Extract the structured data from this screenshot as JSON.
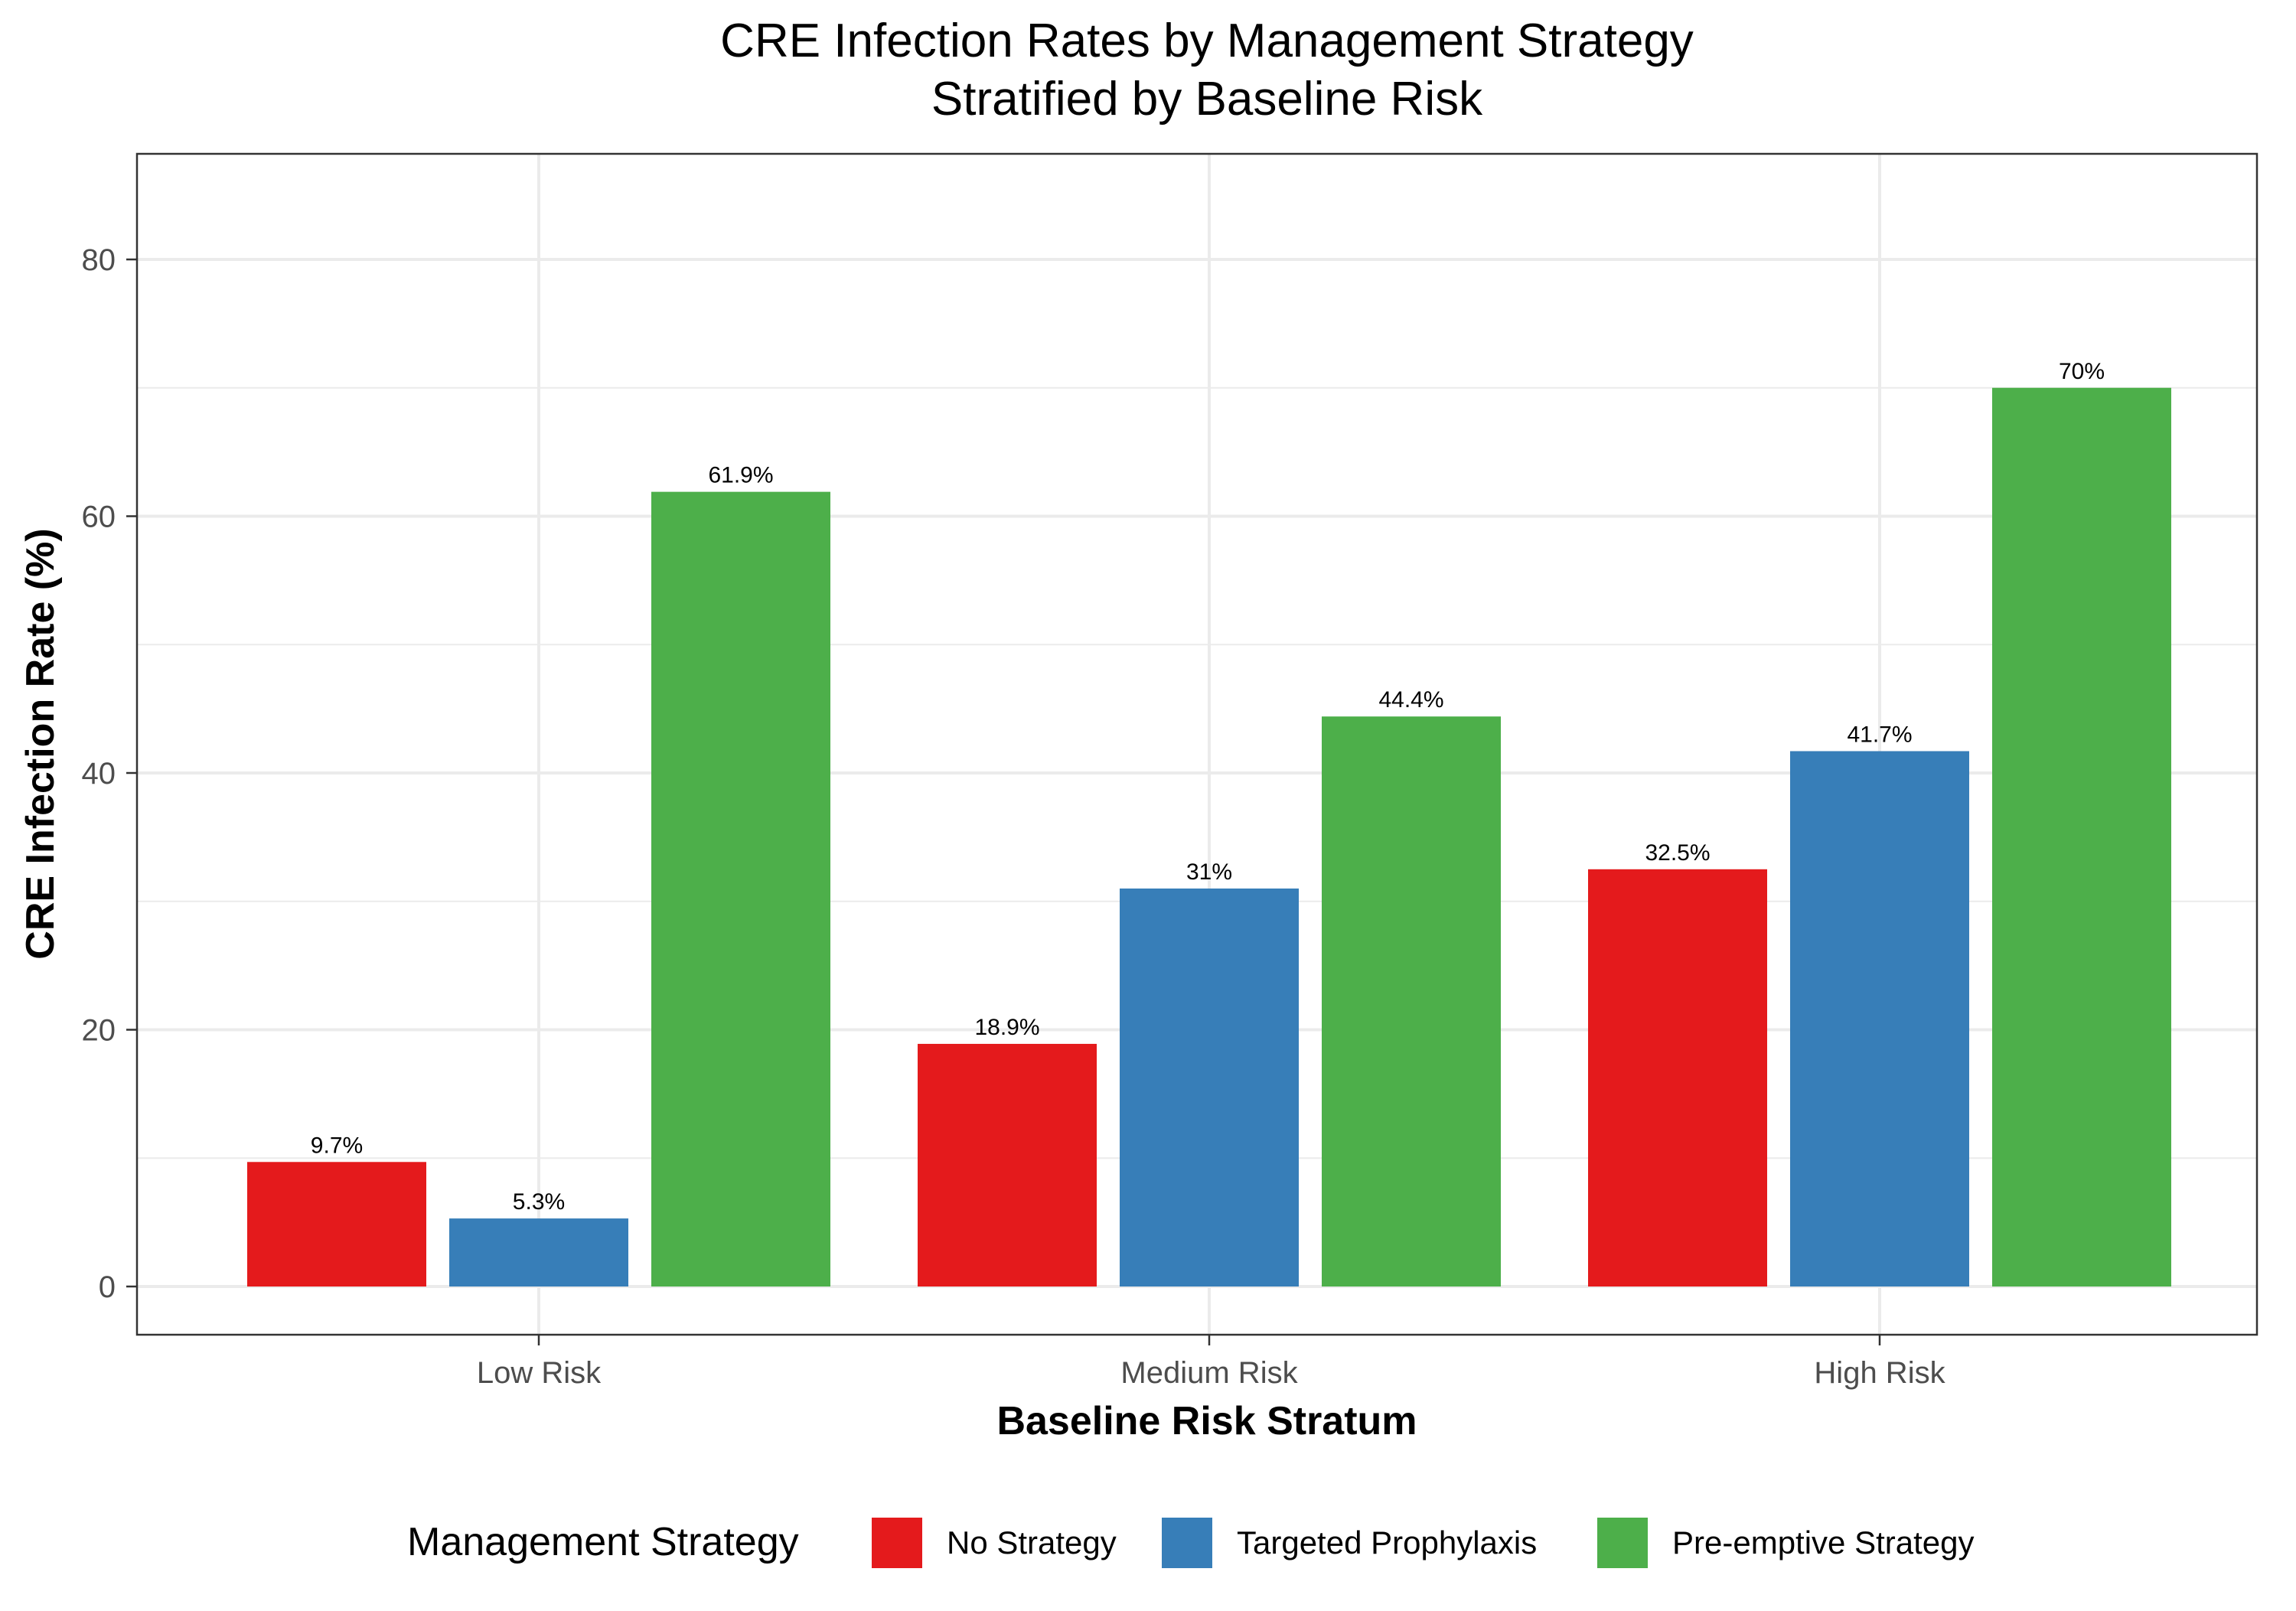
{
  "chart_data": {
    "type": "bar",
    "title_line1": "CRE Infection Rates by Management Strategy",
    "title_line2": "Stratified by Baseline Risk",
    "xlabel": "Baseline Risk Stratum",
    "ylabel": "CRE Infection Rate (%)",
    "categories": [
      "Low Risk",
      "Medium Risk",
      "High Risk"
    ],
    "series": [
      {
        "name": "No Strategy",
        "color": "#E41A1C",
        "values": [
          9.7,
          18.9,
          32.5
        ],
        "labels": [
          "9.7%",
          "18.9%",
          "32.5%"
        ]
      },
      {
        "name": "Targeted Prophylaxis",
        "color": "#377EB8",
        "values": [
          5.3,
          31,
          41.7
        ],
        "labels": [
          "5.3%",
          "31%",
          "41.7%"
        ]
      },
      {
        "name": "Pre-emptive Strategy",
        "color": "#4DAF4A",
        "values": [
          61.9,
          44.4,
          70
        ],
        "labels": [
          "61.9%",
          "44.4%",
          "70%"
        ]
      }
    ],
    "yticks": [
      0,
      20,
      40,
      60,
      80
    ],
    "ytick_labels": [
      "0",
      "20",
      "40",
      "60",
      "80"
    ],
    "ylim": [
      -4,
      88
    ],
    "grid": true,
    "legend": {
      "title": "Management Strategy",
      "position": "bottom"
    }
  }
}
